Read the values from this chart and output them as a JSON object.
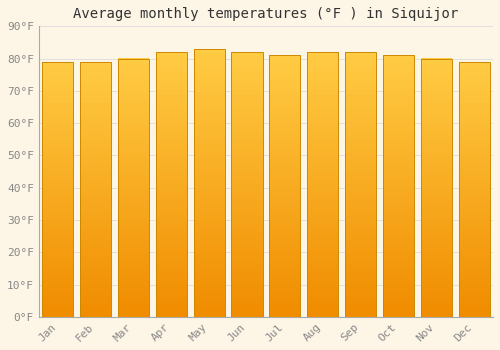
{
  "title": "Average monthly temperatures (°F ) in Siquijor",
  "months": [
    "Jan",
    "Feb",
    "Mar",
    "Apr",
    "May",
    "Jun",
    "Jul",
    "Aug",
    "Sep",
    "Oct",
    "Nov",
    "Dec"
  ],
  "values": [
    79,
    79,
    80,
    82,
    83,
    82,
    81,
    82,
    82,
    81,
    80,
    79
  ],
  "bar_color_top": "#FFCC44",
  "bar_color_bottom": "#F08C00",
  "bar_edge_color": "#CC8800",
  "ylim": [
    0,
    90
  ],
  "yticks": [
    0,
    10,
    20,
    30,
    40,
    50,
    60,
    70,
    80,
    90
  ],
  "ytick_labels": [
    "0°F",
    "10°F",
    "20°F",
    "30°F",
    "40°F",
    "50°F",
    "60°F",
    "70°F",
    "80°F",
    "90°F"
  ],
  "background_color": "#FDF5E6",
  "grid_color": "#DDDDDD",
  "title_fontsize": 10,
  "tick_fontsize": 8,
  "font_family": "monospace",
  "bar_width": 0.82,
  "n_gradient_steps": 50
}
